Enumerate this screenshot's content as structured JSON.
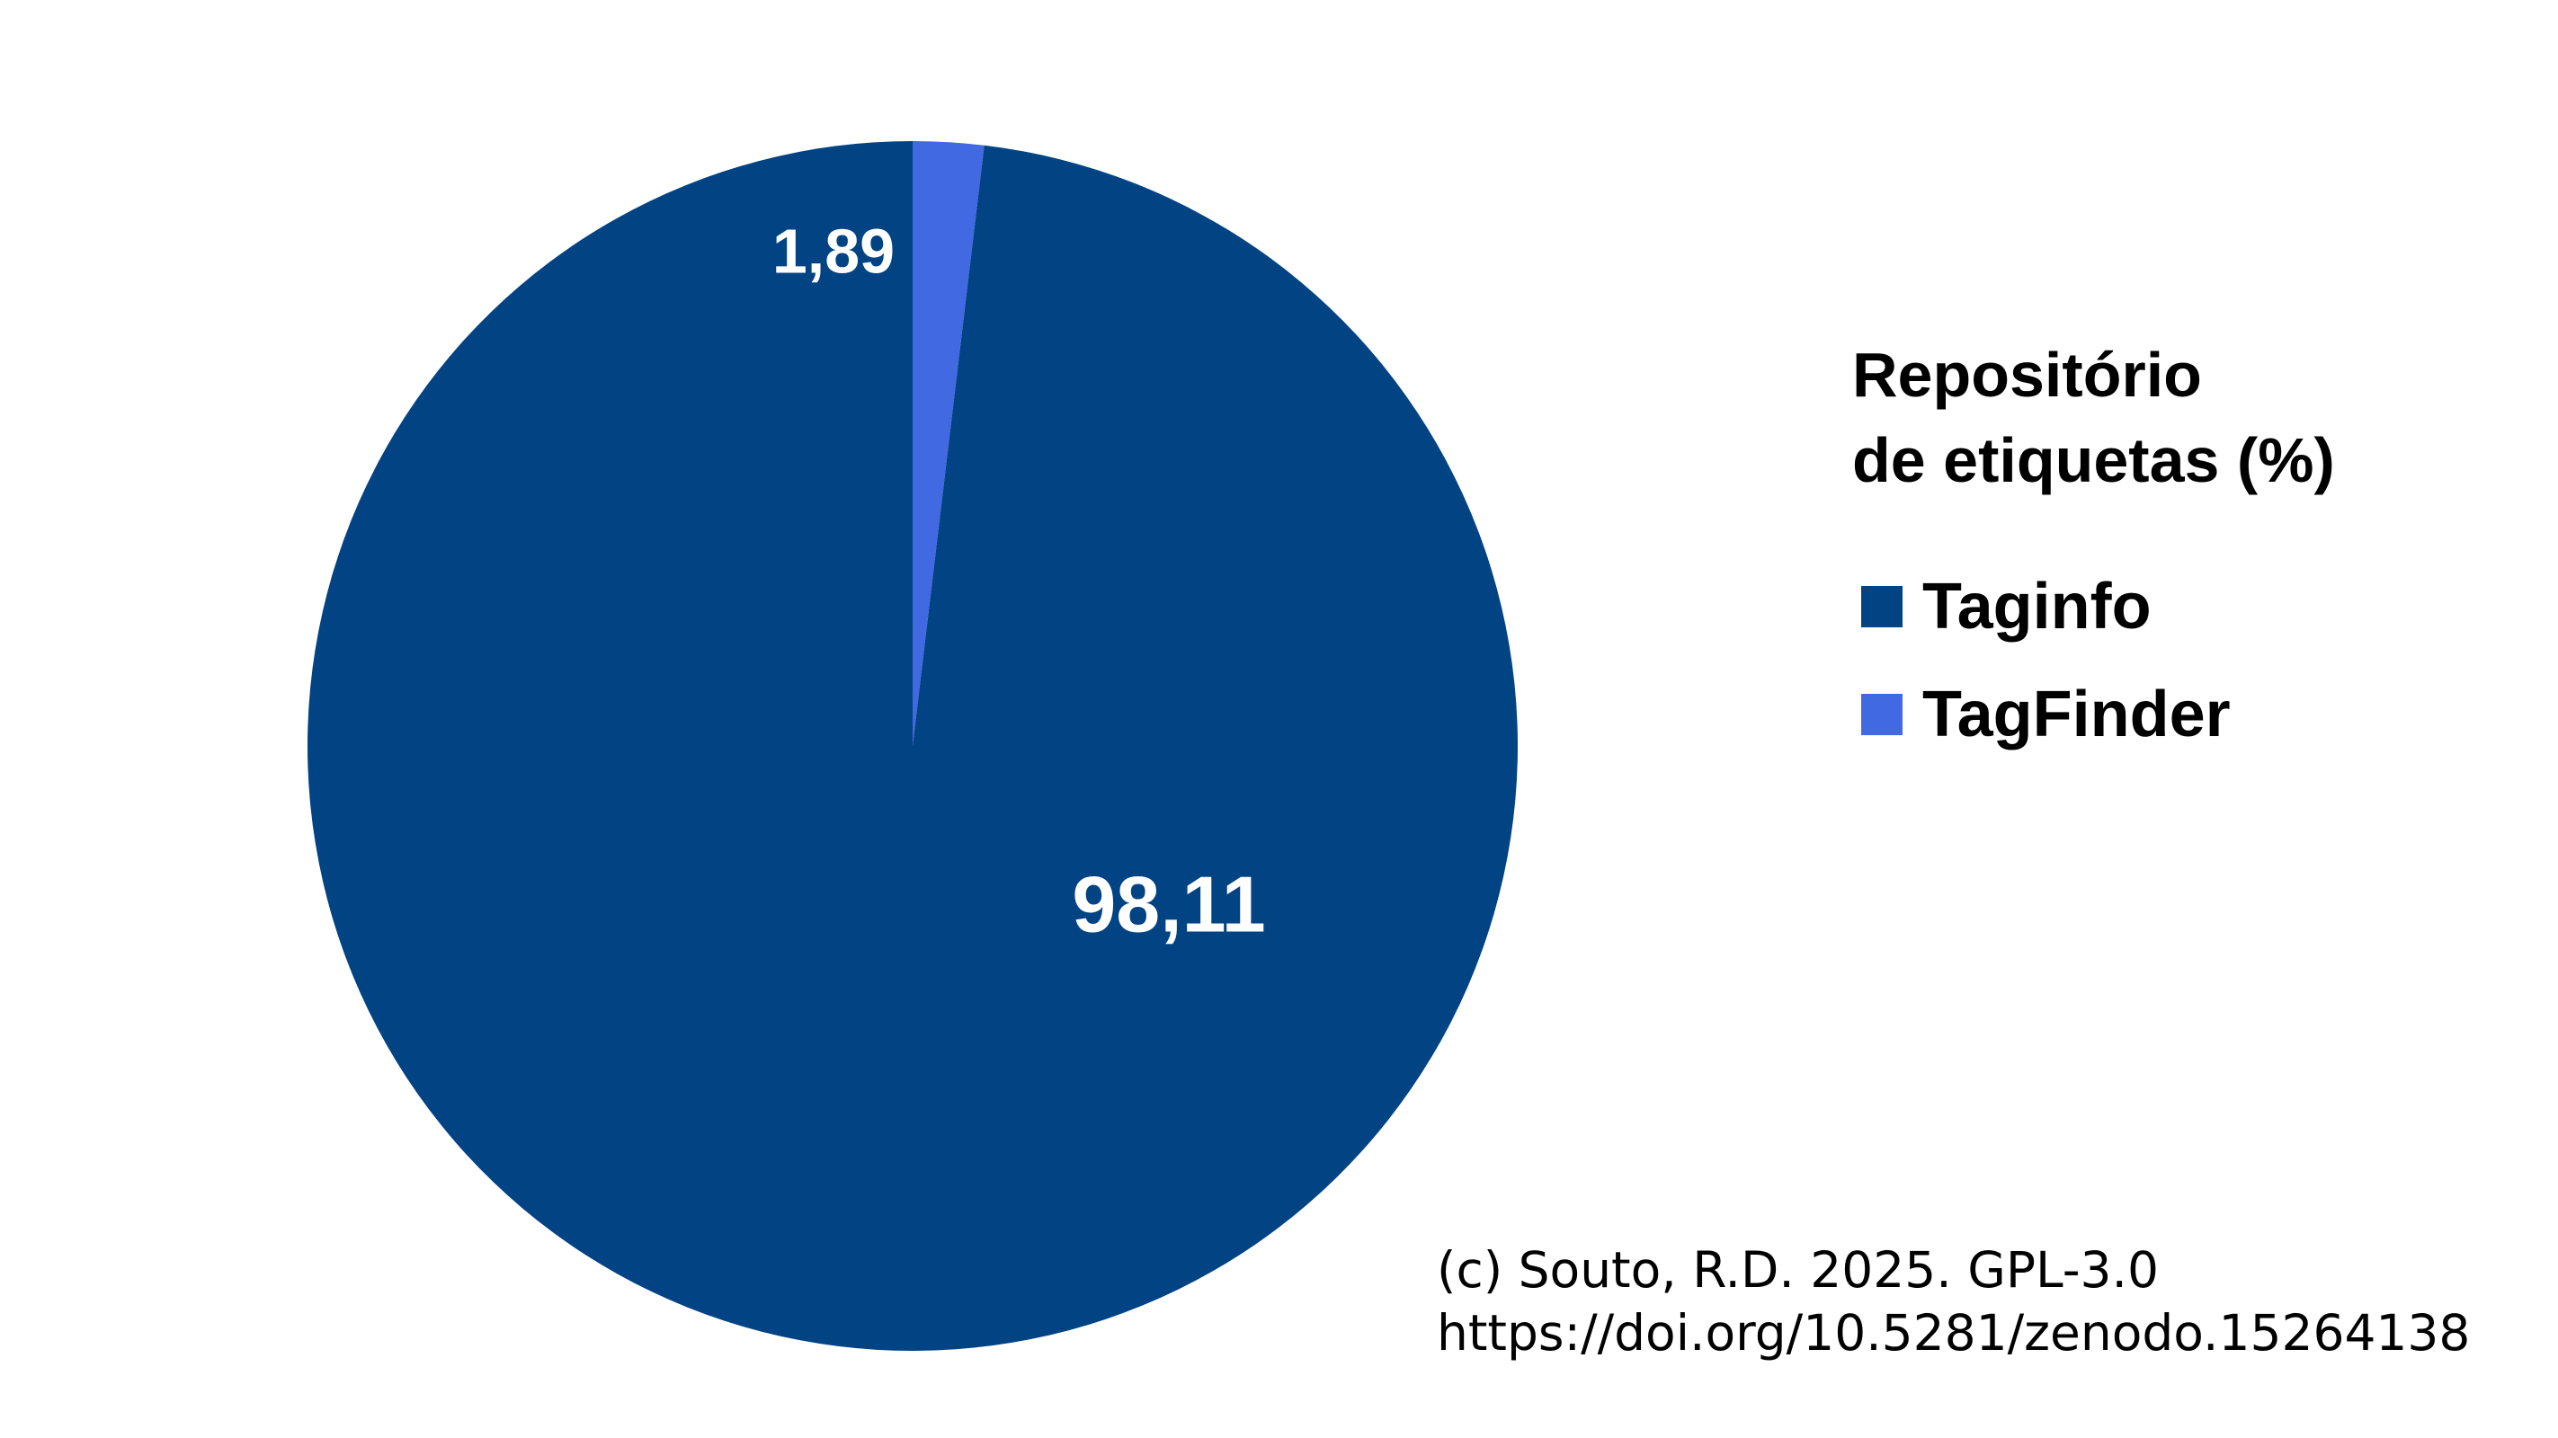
{
  "chart_data": {
    "type": "pie",
    "legend_title": [
      "Repositório",
      "de etiquetas (%)"
    ],
    "legend_position": "right",
    "slices": [
      {
        "name": "Taginfo",
        "value": 98.11,
        "label": "98,11",
        "color": "#024384"
      },
      {
        "name": "TagFinder",
        "value": 1.89,
        "label": "1,89",
        "color": "#4169e1"
      }
    ]
  },
  "credit": {
    "line1": "(c) Souto, R.D. 2025. GPL-3.0",
    "line2": "https://doi.org/10.5281/zenodo.15264138"
  }
}
